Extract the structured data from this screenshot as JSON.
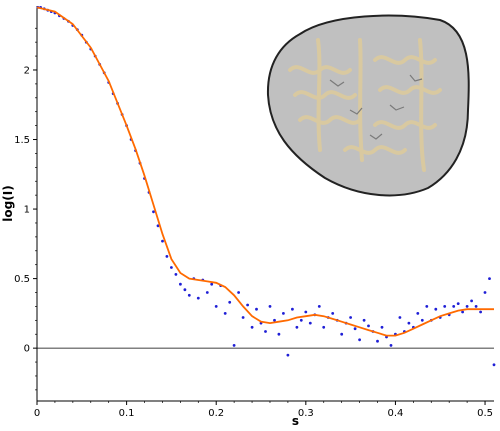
{
  "chart_data": {
    "type": "scatter",
    "xlabel": "s",
    "ylabel": "log(I)",
    "xlim": [
      0,
      0.51
    ],
    "ylim": [
      -0.38,
      2.46
    ],
    "x_ticks": [
      0,
      0.1,
      0.2,
      0.3,
      0.4,
      0.5
    ],
    "x_tick_labels": [
      "0",
      "0.1",
      "0.2",
      "0.3",
      "0.4",
      "0.5"
    ],
    "y_ticks": [
      0,
      0.5,
      1,
      1.5,
      2
    ],
    "y_tick_labels": [
      "0",
      "0.5",
      "1",
      "1.5",
      "2"
    ],
    "grid": false,
    "zero_line": true,
    "colors": {
      "points": "#1f1fd6",
      "fit": "#ff6a00",
      "envelope": "#8c8c8c"
    },
    "series": [
      {
        "kind": "scatter",
        "x": [
          0.001,
          0.004,
          0.008,
          0.012,
          0.016,
          0.02,
          0.025,
          0.03,
          0.035,
          0.04,
          0.045,
          0.05,
          0.055,
          0.06,
          0.065,
          0.07,
          0.075,
          0.08,
          0.085,
          0.09,
          0.095,
          0.1,
          0.105,
          0.11,
          0.115,
          0.12,
          0.125,
          0.13,
          0.135,
          0.14,
          0.145,
          0.15,
          0.155,
          0.16,
          0.165,
          0.17,
          0.175,
          0.18,
          0.185,
          0.19,
          0.195,
          0.2,
          0.205,
          0.21,
          0.215,
          0.22,
          0.225,
          0.23,
          0.235,
          0.24,
          0.245,
          0.25,
          0.255,
          0.26,
          0.265,
          0.27,
          0.275,
          0.28,
          0.285,
          0.29,
          0.295,
          0.3,
          0.305,
          0.31,
          0.315,
          0.32,
          0.325,
          0.33,
          0.335,
          0.34,
          0.345,
          0.35,
          0.355,
          0.36,
          0.365,
          0.37,
          0.375,
          0.38,
          0.385,
          0.39,
          0.395,
          0.4,
          0.405,
          0.41,
          0.415,
          0.42,
          0.425,
          0.43,
          0.435,
          0.44,
          0.445,
          0.45,
          0.455,
          0.46,
          0.465,
          0.47,
          0.475,
          0.48,
          0.485,
          0.49,
          0.495,
          0.5,
          0.505,
          0.51
        ],
        "y": [
          2.45,
          2.45,
          2.44,
          2.43,
          2.42,
          2.41,
          2.39,
          2.37,
          2.35,
          2.32,
          2.29,
          2.25,
          2.2,
          2.15,
          2.1,
          2.04,
          1.98,
          1.91,
          1.83,
          1.76,
          1.68,
          1.6,
          1.5,
          1.42,
          1.33,
          1.22,
          1.12,
          0.98,
          0.88,
          0.77,
          0.66,
          0.58,
          0.53,
          0.46,
          0.42,
          0.38,
          0.5,
          0.36,
          0.49,
          0.4,
          0.46,
          0.3,
          0.45,
          0.25,
          0.33,
          0.02,
          0.4,
          0.22,
          0.31,
          0.15,
          0.28,
          0.18,
          0.12,
          0.3,
          0.2,
          0.1,
          0.25,
          -0.05,
          0.28,
          0.15,
          0.2,
          0.26,
          0.18,
          0.24,
          0.3,
          0.15,
          0.22,
          0.25,
          0.2,
          0.1,
          0.18,
          0.22,
          0.14,
          0.06,
          0.2,
          0.16,
          0.12,
          0.05,
          0.15,
          0.08,
          0.02,
          0.1,
          0.22,
          0.12,
          0.18,
          0.15,
          0.25,
          0.2,
          0.3,
          0.2,
          0.28,
          0.22,
          0.3,
          0.24,
          0.3,
          0.32,
          0.26,
          0.3,
          0.34,
          0.3,
          0.26,
          0.4,
          0.5,
          -0.12
        ]
      },
      {
        "kind": "line",
        "x": [
          0,
          0.02,
          0.04,
          0.06,
          0.08,
          0.1,
          0.11,
          0.12,
          0.13,
          0.14,
          0.15,
          0.16,
          0.17,
          0.18,
          0.19,
          0.2,
          0.21,
          0.22,
          0.23,
          0.24,
          0.25,
          0.26,
          0.27,
          0.28,
          0.29,
          0.3,
          0.31,
          0.32,
          0.33,
          0.34,
          0.35,
          0.36,
          0.37,
          0.38,
          0.39,
          0.4,
          0.41,
          0.42,
          0.43,
          0.44,
          0.45,
          0.46,
          0.47,
          0.48,
          0.49,
          0.5,
          0.51
        ],
        "y": [
          2.45,
          2.42,
          2.33,
          2.16,
          1.92,
          1.6,
          1.43,
          1.24,
          1.03,
          0.82,
          0.64,
          0.54,
          0.5,
          0.49,
          0.48,
          0.47,
          0.44,
          0.38,
          0.3,
          0.23,
          0.19,
          0.18,
          0.19,
          0.2,
          0.22,
          0.23,
          0.24,
          0.23,
          0.21,
          0.19,
          0.17,
          0.15,
          0.13,
          0.11,
          0.09,
          0.09,
          0.11,
          0.14,
          0.17,
          0.2,
          0.23,
          0.25,
          0.27,
          0.28,
          0.28,
          0.28,
          0.28
        ]
      }
    ],
    "inset": {
      "type": "molecular-envelope",
      "position": "top-right"
    }
  }
}
